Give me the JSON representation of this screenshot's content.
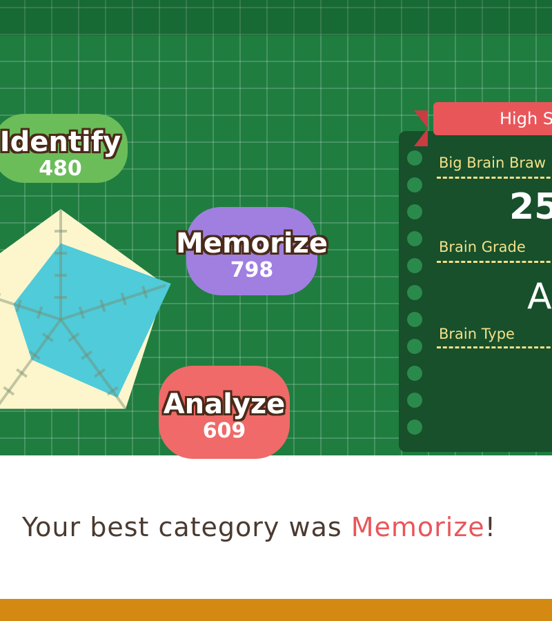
{
  "categories": [
    {
      "name": "Identify",
      "score": "480",
      "color": "#6bbd5a"
    },
    {
      "name": "Memorize",
      "score": "798",
      "color": "#a07fe0"
    },
    {
      "name": "Analyze",
      "score": "609",
      "color": "#ef6a68"
    }
  ],
  "radar_levels": [
    0.69,
    1.05,
    0.875,
    0.45,
    0.45
  ],
  "colors": {
    "board": "#1f7d40",
    "radar_bg": "#fdf6cc",
    "radar_fill": "#4fcbd9",
    "accent": "#e9565a"
  },
  "high_score": {
    "ribbon": "High S",
    "mode_label": "Big Brain Braw",
    "score": "25",
    "grade_label": "Brain Grade",
    "grade": "A",
    "type_label": "Brain Type"
  },
  "message": {
    "prefix": "Your best category was ",
    "highlight": "Memorize",
    "suffix": "!"
  }
}
